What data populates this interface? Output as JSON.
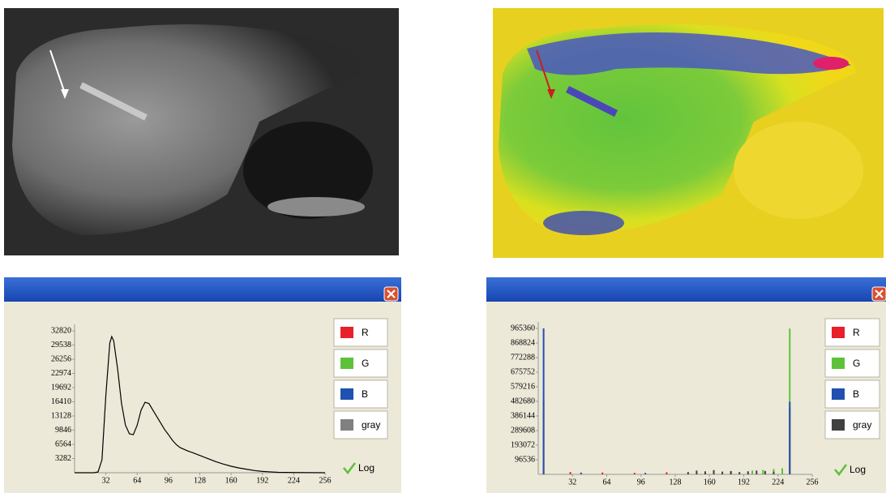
{
  "chart_data": [
    {
      "type": "line",
      "x": [
        0,
        20,
        24,
        28,
        32,
        36,
        38,
        40,
        44,
        48,
        52,
        56,
        60,
        64,
        68,
        72,
        76,
        80,
        84,
        88,
        92,
        96,
        100,
        104,
        108,
        112,
        116,
        120,
        128,
        136,
        144,
        152,
        160,
        168,
        176,
        184,
        192,
        200,
        208,
        224,
        240,
        256
      ],
      "series": [
        {
          "name": "R",
          "color": "#e8202a",
          "x": [],
          "values": []
        },
        {
          "name": "G",
          "color": "#5dc23a",
          "x": [],
          "values": []
        },
        {
          "name": "B",
          "color": "#2050b0",
          "x": [],
          "values": []
        },
        {
          "name": "gray",
          "color": "#808080",
          "x": [
            0,
            20,
            24,
            28,
            32,
            36,
            38,
            40,
            44,
            48,
            52,
            56,
            60,
            64,
            68,
            72,
            76,
            80,
            84,
            88,
            92,
            96,
            100,
            104,
            108,
            112,
            116,
            120,
            128,
            136,
            144,
            152,
            160,
            168,
            176,
            184,
            192,
            200,
            208,
            224,
            240,
            256
          ],
          "values": [
            0,
            0,
            200,
            3000,
            18000,
            30000,
            31500,
            30500,
            24000,
            16000,
            11000,
            9000,
            8800,
            11000,
            14500,
            16300,
            16000,
            14500,
            13000,
            11500,
            10000,
            8800,
            7500,
            6500,
            5800,
            5400,
            5000,
            4700,
            4000,
            3300,
            2600,
            2000,
            1500,
            1100,
            800,
            500,
            300,
            200,
            100,
            50,
            30,
            0
          ]
        }
      ],
      "xlim": [
        0,
        256
      ],
      "xticks": [
        32,
        64,
        96,
        128,
        160,
        192,
        224,
        256
      ],
      "ylim": [
        0,
        32820
      ],
      "yticks": [
        3282,
        6564,
        9846,
        13128,
        16410,
        19692,
        22974,
        26256,
        29538,
        32820
      ],
      "log_label": "Log"
    },
    {
      "type": "stem",
      "series": [
        {
          "name": "R",
          "color": "#e8202a",
          "x": [
            5,
            30,
            60,
            90,
            120,
            180,
            235
          ],
          "values": [
            480000,
            15000,
            12000,
            10000,
            14000,
            20000,
            440000
          ]
        },
        {
          "name": "G",
          "color": "#5dc23a",
          "x": [
            200,
            210,
            220,
            228,
            235
          ],
          "values": [
            25000,
            30000,
            35000,
            40000,
            965000
          ]
        },
        {
          "name": "B",
          "color": "#2050b0",
          "x": [
            5,
            40,
            100,
            235
          ],
          "values": [
            965360,
            12000,
            10000,
            480000
          ]
        },
        {
          "name": "gray",
          "color": "#404040",
          "x": [
            140,
            148,
            156,
            164,
            172,
            180,
            188,
            196,
            204,
            212,
            220
          ],
          "values": [
            15000,
            25000,
            20000,
            28000,
            18000,
            22000,
            15000,
            20000,
            25000,
            22000,
            18000
          ]
        }
      ],
      "xlim": [
        0,
        256
      ],
      "xticks": [
        32,
        64,
        96,
        128,
        160,
        192,
        224,
        256
      ],
      "ylim": [
        0,
        965360
      ],
      "yticks": [
        96536,
        193072,
        289608,
        386144,
        482680,
        579216,
        675752,
        772288,
        868824,
        965360
      ],
      "log_label": "Log"
    }
  ]
}
